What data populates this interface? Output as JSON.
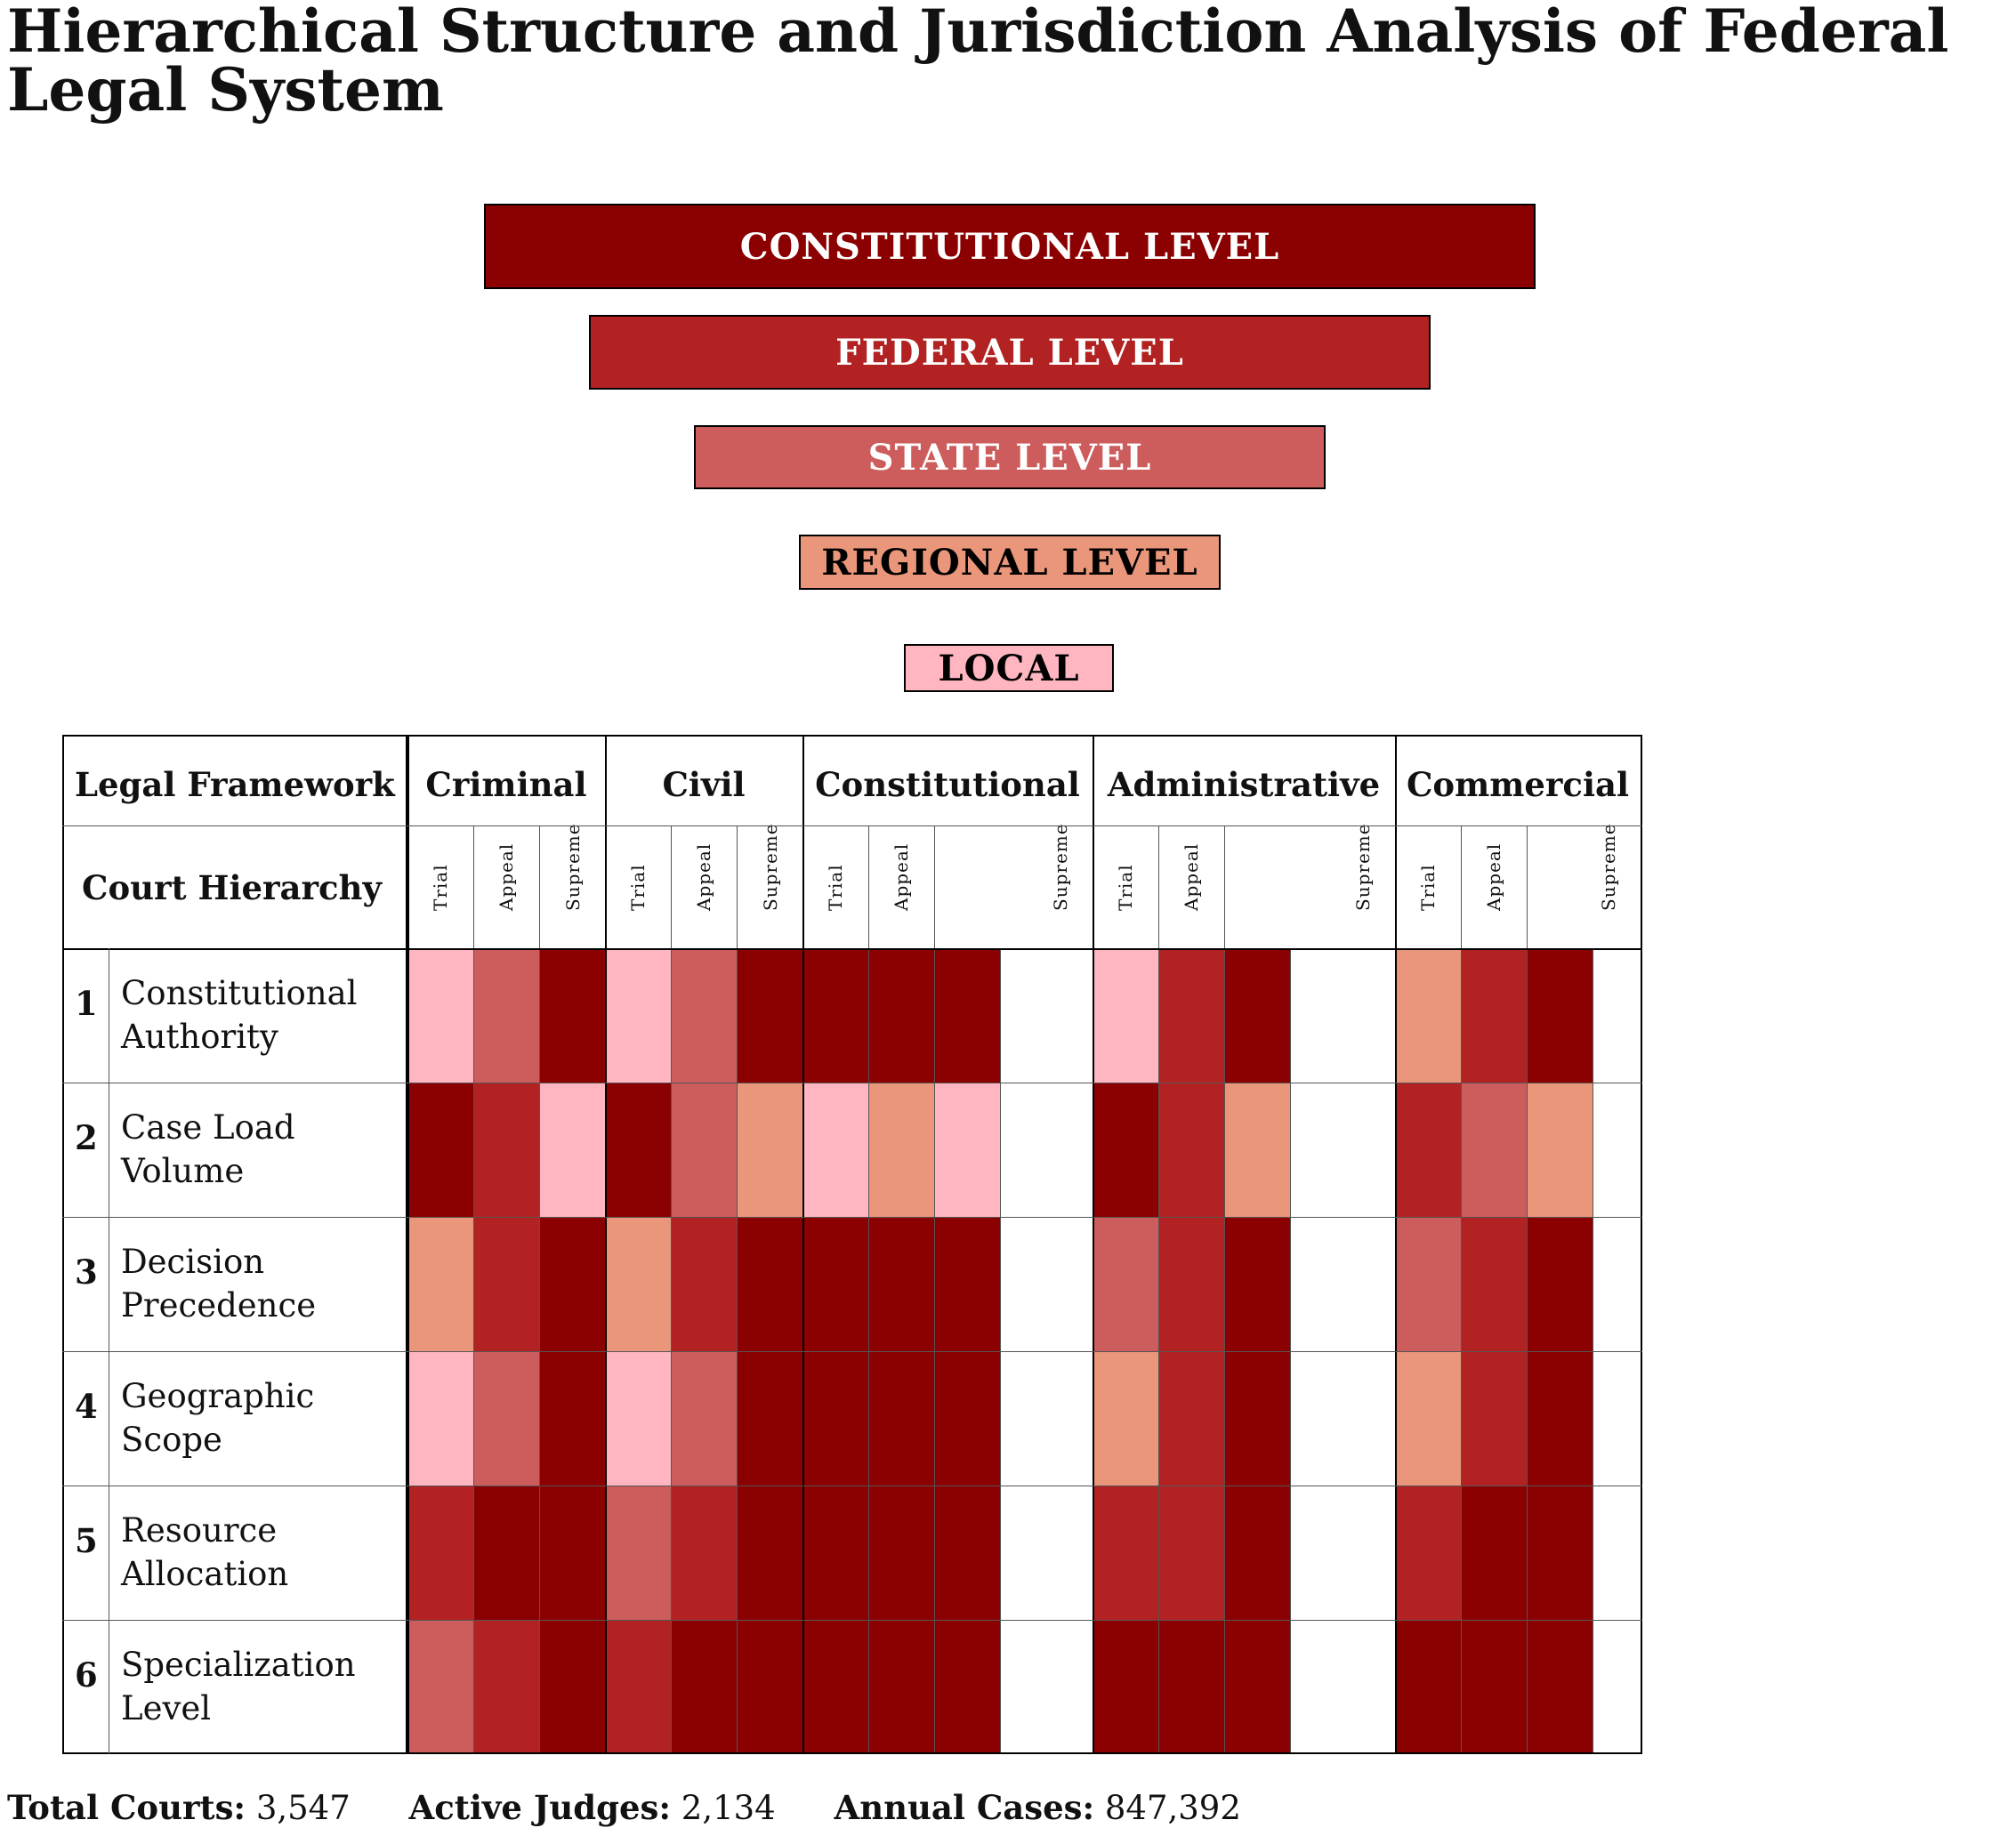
{
  "title": "Hierarchical Structure and Jurisdiction Analysis of Federal Legal System",
  "tiers": [
    {
      "label": "CONSTITUTIONAL LEVEL",
      "color": "#8B0000",
      "text_color": "#ffffff"
    },
    {
      "label": "FEDERAL LEVEL",
      "color": "#B22222",
      "text_color": "#ffffff"
    },
    {
      "label": "STATE LEVEL",
      "color": "#CD5C5C",
      "text_color": "#ffffff"
    },
    {
      "label": "REGIONAL LEVEL",
      "color": "#E9967A",
      "text_color": "#000000"
    },
    {
      "label": "LOCAL",
      "color": "#FFB6C1",
      "text_color": "#000000"
    }
  ],
  "matrix": {
    "corner_top": "Legal Framework",
    "corner_bottom": "Court Hierarchy",
    "groups": [
      {
        "name": "Criminal",
        "subs": [
          "Trial",
          "Appeal",
          "Supreme"
        ]
      },
      {
        "name": "Civil",
        "subs": [
          "Trial",
          "Appeal",
          "Supreme"
        ]
      },
      {
        "name": "Constitutional",
        "subs": [
          "Trial",
          "Appeal",
          "Supreme"
        ]
      },
      {
        "name": "Administrative",
        "subs": [
          "Trial",
          "Appeal",
          "Supreme"
        ]
      },
      {
        "name": "Commercial",
        "subs": [
          "Trial",
          "Appeal",
          "Supreme"
        ]
      }
    ],
    "palette": {
      "1": "#FFB6C1",
      "2": "#E9967A",
      "3": "#CD5C5C",
      "4": "#B22222",
      "5": "#8B0000"
    },
    "rows": [
      {
        "num": "1",
        "label": "Constitutional Authority",
        "levels": [
          1,
          3,
          5,
          1,
          3,
          5,
          5,
          5,
          5,
          1,
          4,
          5,
          2,
          4,
          5
        ]
      },
      {
        "num": "2",
        "label": "Case Load Volume",
        "levels": [
          5,
          4,
          1,
          5,
          3,
          2,
          1,
          2,
          1,
          5,
          4,
          2,
          4,
          3,
          2
        ]
      },
      {
        "num": "3",
        "label": "Decision Precedence",
        "levels": [
          2,
          4,
          5,
          2,
          4,
          5,
          5,
          5,
          5,
          3,
          4,
          5,
          3,
          4,
          5
        ]
      },
      {
        "num": "4",
        "label": "Geographic Scope",
        "levels": [
          1,
          3,
          5,
          1,
          3,
          5,
          5,
          5,
          5,
          2,
          4,
          5,
          2,
          4,
          5
        ]
      },
      {
        "num": "5",
        "label": "Resource Allocation",
        "levels": [
          4,
          5,
          5,
          3,
          4,
          5,
          5,
          5,
          5,
          4,
          4,
          5,
          4,
          5,
          5
        ]
      },
      {
        "num": "6",
        "label": "Specialization Level",
        "levels": [
          3,
          4,
          5,
          4,
          5,
          5,
          5,
          5,
          5,
          5,
          5,
          5,
          5,
          5,
          5
        ]
      }
    ]
  },
  "stats": [
    {
      "label": "Total Courts:",
      "value": "3,547"
    },
    {
      "label": "Active Judges:",
      "value": "2,134"
    },
    {
      "label": "Annual Cases:",
      "value": "847,392"
    }
  ]
}
